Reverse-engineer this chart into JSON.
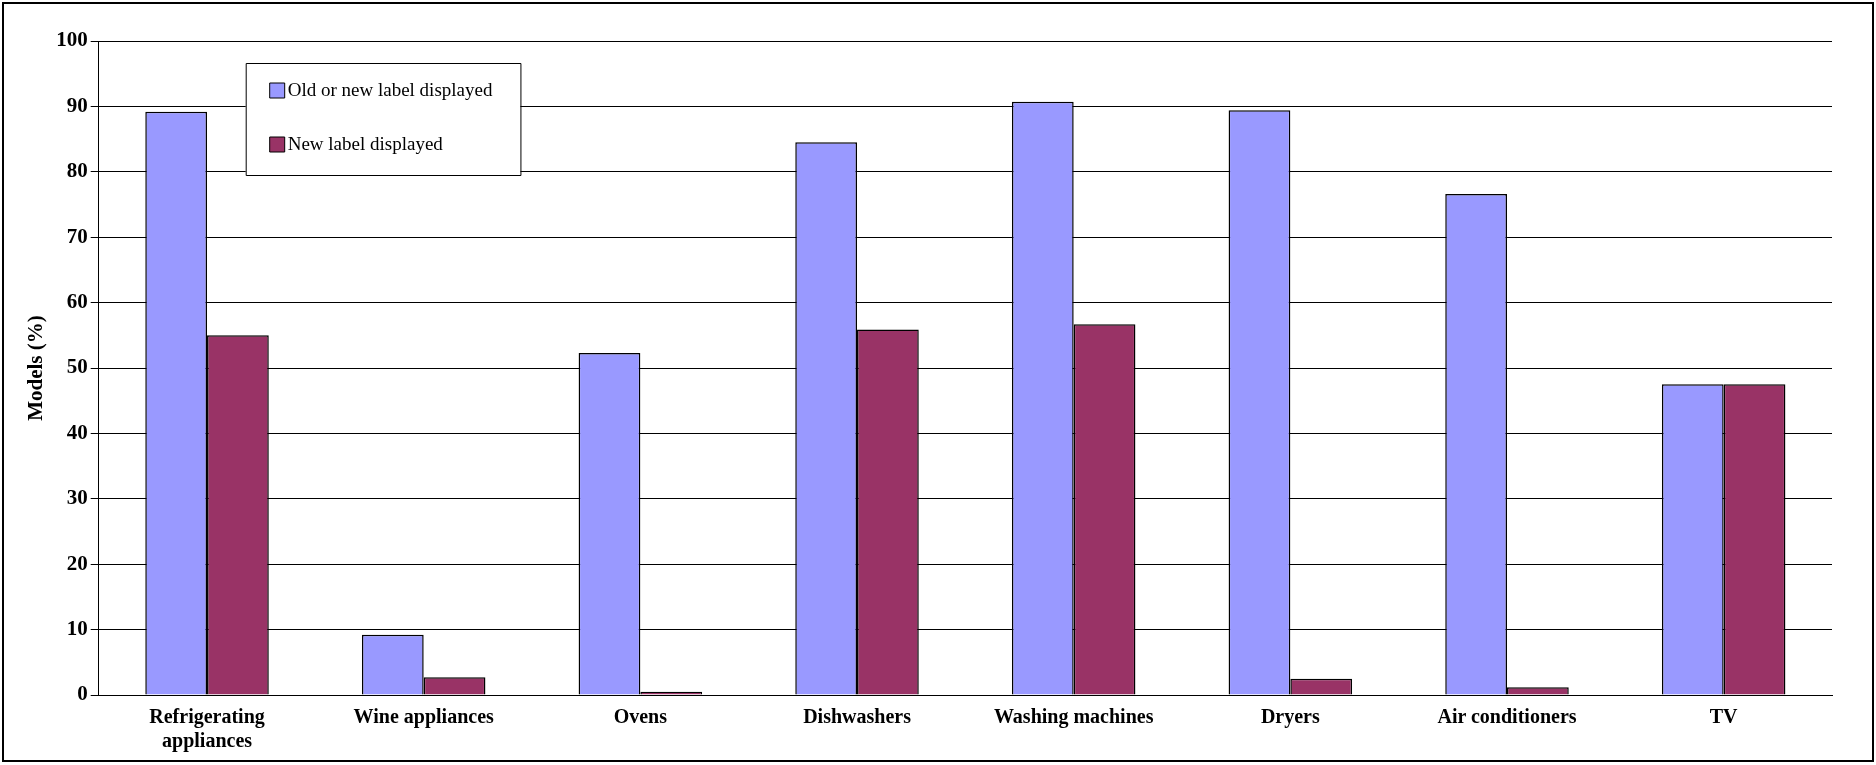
{
  "chart_data": {
    "type": "bar",
    "ylabel": "Models (%)",
    "categories": [
      "Refrigerating appliances",
      "Wine appliances",
      "Ovens",
      "Dishwashers",
      "Washing machines",
      "Dryers",
      "Air conditioners",
      "TV"
    ],
    "series": [
      {
        "name": "Old or new label displayed",
        "color": "#9999ff",
        "values": [
          89.2,
          9.2,
          52.3,
          84.5,
          90.7,
          89.4,
          76.6,
          47.5
        ]
      },
      {
        "name": "New label displayed",
        "color": "#993366",
        "values": [
          55.0,
          2.7,
          0.5,
          55.9,
          56.7,
          2.5,
          1.2,
          47.5
        ]
      }
    ],
    "ylim": [
      0,
      100
    ],
    "yticks": [
      0,
      10,
      20,
      30,
      40,
      50,
      60,
      70,
      80,
      90,
      100
    ],
    "grid": "y",
    "legend": "top left"
  }
}
